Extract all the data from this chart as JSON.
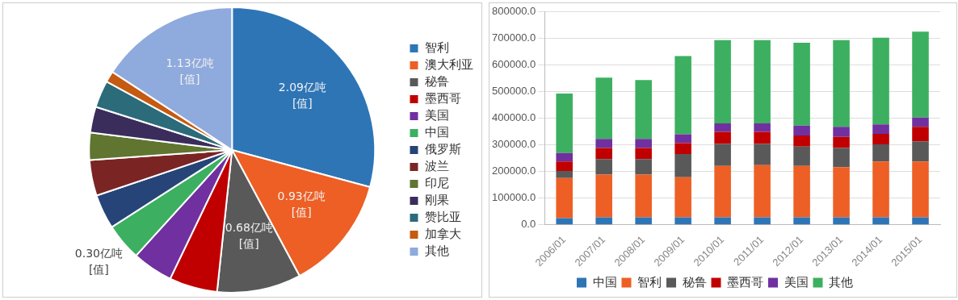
{
  "chart_data": [
    {
      "type": "pie",
      "categories": [
        "智利",
        "澳大利亚",
        "秘鲁",
        "墨西哥",
        "美国",
        "中国",
        "俄罗斯",
        "波兰",
        "印尼",
        "刚果",
        "赞比亚",
        "加拿大",
        "其他"
      ],
      "values": [
        2.09,
        0.93,
        0.68,
        0.39,
        0.33,
        0.3,
        0.28,
        0.29,
        0.22,
        0.21,
        0.22,
        0.09,
        1.13
      ],
      "colors": [
        "#2e75b6",
        "#ed5f24",
        "#595959",
        "#c00000",
        "#7030a0",
        "#3cb060",
        "#264478",
        "#7b2424",
        "#5f7530",
        "#3a2d5c",
        "#2b6b7a",
        "#c55a11",
        "#8faadc"
      ],
      "value_labels": [
        "2.09亿吨\n[值]",
        "0.93亿吨\n[值]",
        "0.68亿吨\n[值]",
        null,
        null,
        "0.30亿吨\n[值]",
        null,
        null,
        null,
        null,
        null,
        null,
        "1.13亿吨\n[值]"
      ],
      "legend": "right"
    },
    {
      "type": "bar",
      "stacked": true,
      "categories": [
        "2006/01",
        "2007/01",
        "2008/01",
        "2009/01",
        "2010/01",
        "2011/01",
        "2012/01",
        "2013/01",
        "2014/01",
        "2015/01"
      ],
      "series": [
        {
          "name": "中国",
          "color": "#2e75b6",
          "values": [
            25000,
            28000,
            28000,
            28000,
            28000,
            28000,
            28000,
            28000,
            28000,
            28000
          ]
        },
        {
          "name": "智利",
          "color": "#ed5f24",
          "values": [
            151000,
            161000,
            161000,
            151000,
            193000,
            196000,
            193000,
            189000,
            210000,
            210000
          ]
        },
        {
          "name": "秘鲁",
          "color": "#595959",
          "values": [
            26000,
            58000,
            58000,
            87000,
            83000,
            80000,
            73000,
            72000,
            64000,
            76000
          ]
        },
        {
          "name": "墨西哥",
          "color": "#c00000",
          "values": [
            36000,
            42000,
            42000,
            41000,
            45000,
            45000,
            42000,
            41000,
            40000,
            54000
          ]
        },
        {
          "name": "美国",
          "color": "#7030a0",
          "values": [
            32000,
            34000,
            34000,
            33000,
            32000,
            32000,
            37000,
            38000,
            35000,
            35000
          ]
        },
        {
          "name": "其他",
          "color": "#3cb060",
          "values": [
            223000,
            230000,
            221000,
            294000,
            313000,
            313000,
            311000,
            326000,
            326000,
            323000
          ]
        }
      ],
      "ylim": [
        0,
        800000
      ],
      "yticks": [
        {
          "value": 0,
          "label": "0.0"
        },
        {
          "value": 100000,
          "label": "100000.0"
        },
        {
          "value": 200000,
          "label": "200000.0"
        },
        {
          "value": 300000,
          "label": "300000.0"
        },
        {
          "value": 400000,
          "label": "400000.0"
        },
        {
          "value": 500000,
          "label": "500000.0"
        },
        {
          "value": 600000,
          "label": "600000.0"
        },
        {
          "value": 700000,
          "label": "700000.0"
        },
        {
          "value": 800000,
          "label": "800000.0"
        }
      ],
      "grid": "y",
      "legend": "bottom"
    }
  ]
}
